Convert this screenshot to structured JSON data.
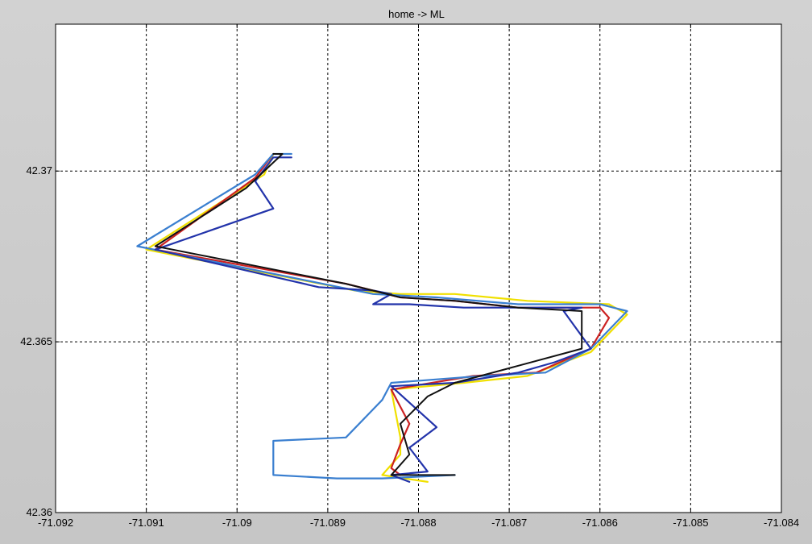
{
  "chart_data": {
    "type": "line",
    "title": "home -> ML",
    "xlabel": "",
    "ylabel": "",
    "xlim": [
      -71.092,
      -71.084
    ],
    "ylim": [
      42.36,
      42.3743
    ],
    "grid": true,
    "x_ticks": [
      -71.092,
      -71.091,
      -71.09,
      -71.089,
      -71.088,
      -71.087,
      -71.086,
      -71.085,
      -71.084
    ],
    "x_tick_labels": [
      "-71.092",
      "-71.091",
      "-71.09",
      "-71.089",
      "-71.088",
      "-71.087",
      "-71.086",
      "-71.085",
      "-71.084"
    ],
    "y_ticks": [
      42.36,
      42.365,
      42.37
    ],
    "y_tick_labels": [
      "42.36",
      "42.365",
      "42.37"
    ],
    "series": [
      {
        "color": "#f0e000",
        "x": [
          -71.0879,
          -71.0884,
          -71.0882,
          -71.0882,
          -71.0883,
          -71.0875,
          -71.0868,
          -71.0861,
          -71.0857,
          -71.0859,
          -71.0868,
          -71.0876,
          -71.0882,
          -71.0887,
          -71.091,
          -71.0897,
          -71.0896
        ],
        "y": [
          42.3609,
          42.3611,
          42.3617,
          42.3622,
          42.3636,
          42.3638,
          42.364,
          42.3647,
          42.3658,
          42.3661,
          42.3662,
          42.3664,
          42.3664,
          42.3665,
          42.3677,
          42.3699,
          42.3705
        ]
      },
      {
        "color": "#cc2222",
        "x": [
          -71.0882,
          -71.0883,
          -71.0882,
          -71.0881,
          -71.0883,
          -71.0874,
          -71.0867,
          -71.0861,
          -71.0859,
          -71.086,
          -71.0869,
          -71.0876,
          -71.0882,
          -71.0888,
          -71.0909,
          -71.0898,
          -71.0896
        ],
        "y": [
          42.3611,
          42.3613,
          42.362,
          42.3626,
          42.3636,
          42.364,
          42.3641,
          42.3648,
          42.3657,
          42.366,
          42.366,
          42.3662,
          42.3663,
          42.3667,
          42.3677,
          42.3698,
          42.3705
        ]
      },
      {
        "color": "#3a7fd0",
        "x": [
          -71.0876,
          -71.0884,
          -71.0889,
          -71.0896,
          -71.0896,
          -71.0888,
          -71.0884,
          -71.0883,
          -71.0873,
          -71.0866,
          -71.0861,
          -71.0857,
          -71.086,
          -71.0869,
          -71.0878,
          -71.0885,
          -71.0911,
          -71.0898,
          -71.0896,
          -71.0894
        ],
        "y": [
          42.3611,
          42.361,
          42.361,
          42.3611,
          42.3621,
          42.3622,
          42.3633,
          42.3638,
          42.364,
          42.3641,
          42.3648,
          42.3659,
          42.3661,
          42.3661,
          42.3663,
          42.3664,
          42.3678,
          42.3699,
          42.3705,
          42.3705
        ]
      },
      {
        "color": "#2233aa",
        "x": [
          -71.0881,
          -71.0883,
          -71.0879,
          -71.0881,
          -71.0878,
          -71.0883,
          -71.0876,
          -71.0869,
          -71.0865,
          -71.0861,
          -71.0864,
          -71.0862,
          -71.0867,
          -71.0875,
          -71.0881,
          -71.0885,
          -71.0883,
          -71.0885,
          -71.0891,
          -71.0909,
          -71.0896,
          -71.0898,
          -71.0896,
          -71.0894
        ],
        "y": [
          42.3609,
          42.3611,
          42.3612,
          42.3619,
          42.3625,
          42.3637,
          42.3638,
          42.3641,
          42.3644,
          42.3648,
          42.3659,
          42.366,
          42.366,
          42.366,
          42.3661,
          42.3661,
          42.3664,
          42.3665,
          42.3666,
          42.3677,
          42.3689,
          42.3697,
          42.3704,
          42.3704
        ]
      },
      {
        "color": "#111111",
        "x": [
          -71.0876,
          -71.0883,
          -71.0881,
          -71.0882,
          -71.0879,
          -71.0876,
          -71.0869,
          -71.0862,
          -71.0862,
          -71.0869,
          -71.0876,
          -71.0882,
          -71.0888,
          -71.0909,
          -71.0899,
          -71.0895,
          -71.0896
        ],
        "y": [
          42.3611,
          42.3611,
          42.3617,
          42.3626,
          42.3634,
          42.3638,
          42.3643,
          42.3648,
          42.3659,
          42.366,
          42.3662,
          42.3663,
          42.3667,
          42.3678,
          42.3695,
          42.3705,
          42.3705
        ]
      }
    ]
  }
}
